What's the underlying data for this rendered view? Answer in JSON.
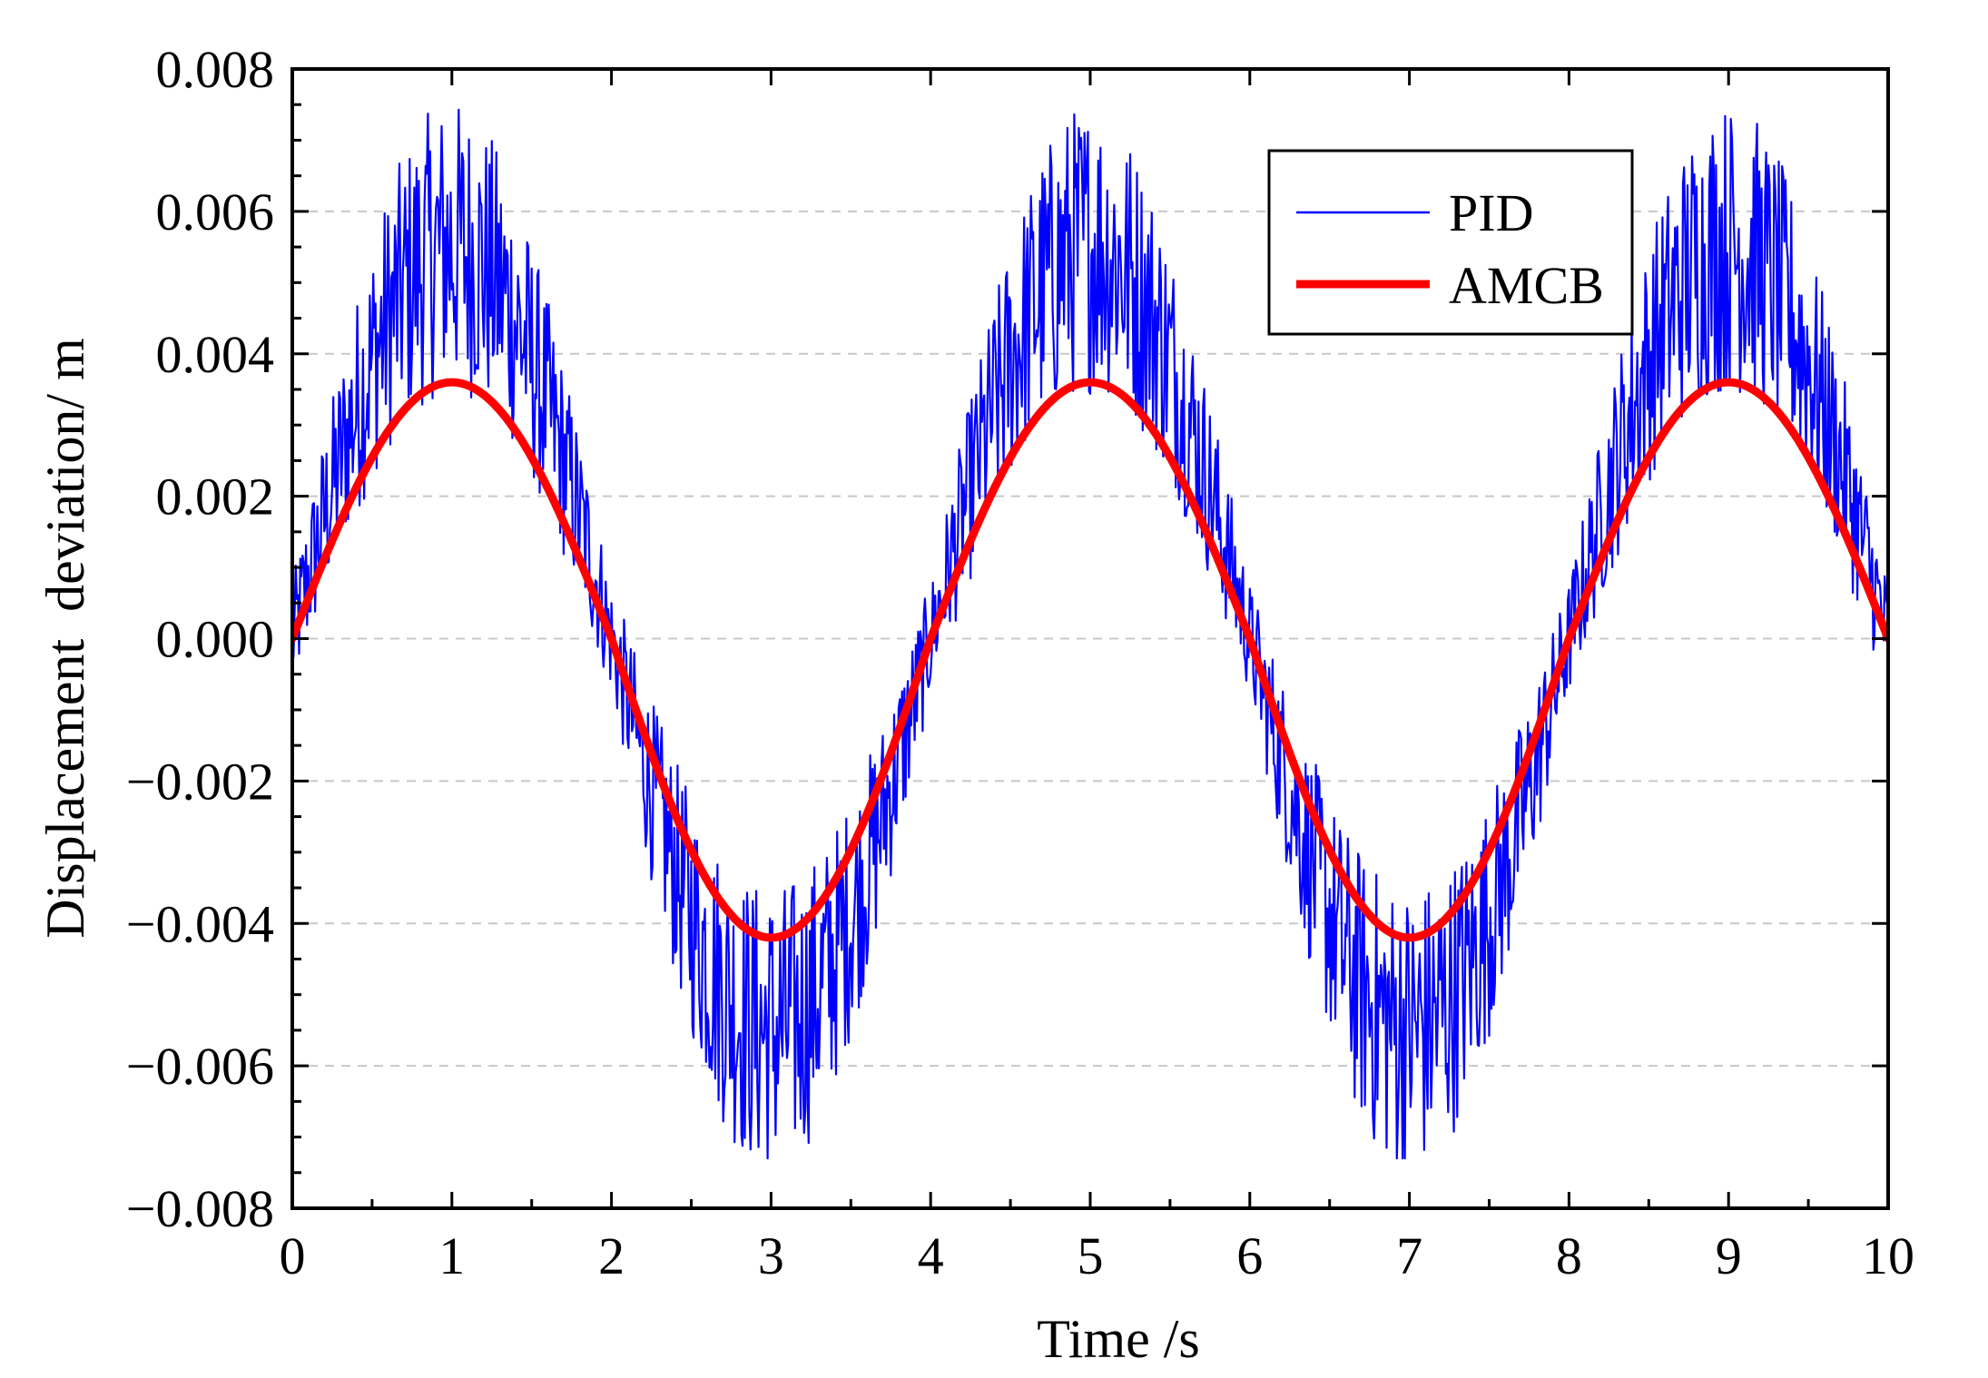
{
  "chart_data": {
    "type": "line",
    "title": "",
    "xlabel": "Time /s",
    "ylabel": "Displacement  deviation/ m",
    "xlim": [
      0,
      10
    ],
    "ylim": [
      -0.008,
      0.008
    ],
    "xticks": [
      0,
      1,
      2,
      3,
      4,
      5,
      6,
      7,
      8,
      9,
      10
    ],
    "xtick_labels": [
      "0",
      "1",
      "2",
      "3",
      "4",
      "5",
      "6",
      "7",
      "8",
      "9",
      "10"
    ],
    "yticks": [
      -0.008,
      -0.006,
      -0.004,
      -0.002,
      0.0,
      0.002,
      0.004,
      0.006,
      0.008
    ],
    "ytick_labels": [
      "−0.008",
      "−0.006",
      "−0.004",
      "−0.002",
      "0.000",
      "0.002",
      "0.004",
      "0.006",
      "0.008"
    ],
    "grid": "horizontal dashed",
    "legend_position": "top-right",
    "series": [
      {
        "name": "PID",
        "color": "#0000ff",
        "style": "thin noisy line",
        "description": "sinusoid of period 4 s with high-frequency oscillation, envelope approx. -0.0073 to 0.0078",
        "x": [
          0,
          0.5,
          1,
          1.5,
          2,
          2.5,
          3,
          3.5,
          4,
          4.5,
          5,
          5.5,
          6,
          6.5,
          7,
          7.5,
          8,
          8.5,
          9,
          9.5,
          10
        ],
        "values": [
          0.0,
          0.0035,
          0.0055,
          0.0035,
          -0.0005,
          -0.0045,
          -0.0055,
          -0.004,
          0.0,
          0.0035,
          0.0055,
          0.0035,
          -0.0005,
          -0.0045,
          -0.0055,
          -0.004,
          0.0,
          0.0035,
          0.0055,
          0.0035,
          0.0
        ],
        "max": 0.0078,
        "min": -0.0073
      },
      {
        "name": "AMCB",
        "color": "#ff0000",
        "style": "thick smooth line",
        "x": [
          0,
          0.5,
          1,
          1.5,
          2,
          2.5,
          3,
          3.5,
          4,
          4.5,
          5,
          5.5,
          6,
          6.5,
          7,
          7.5,
          8,
          8.5,
          9,
          9.5,
          10
        ],
        "values": [
          0.0,
          0.00255,
          0.0036,
          0.00255,
          0.0,
          -0.00297,
          -0.0042,
          -0.00297,
          0.0,
          0.00255,
          0.0036,
          0.00255,
          0.0,
          -0.00297,
          -0.0042,
          -0.00297,
          0.0,
          0.00255,
          0.0036,
          0.00255,
          0.0
        ]
      }
    ]
  }
}
